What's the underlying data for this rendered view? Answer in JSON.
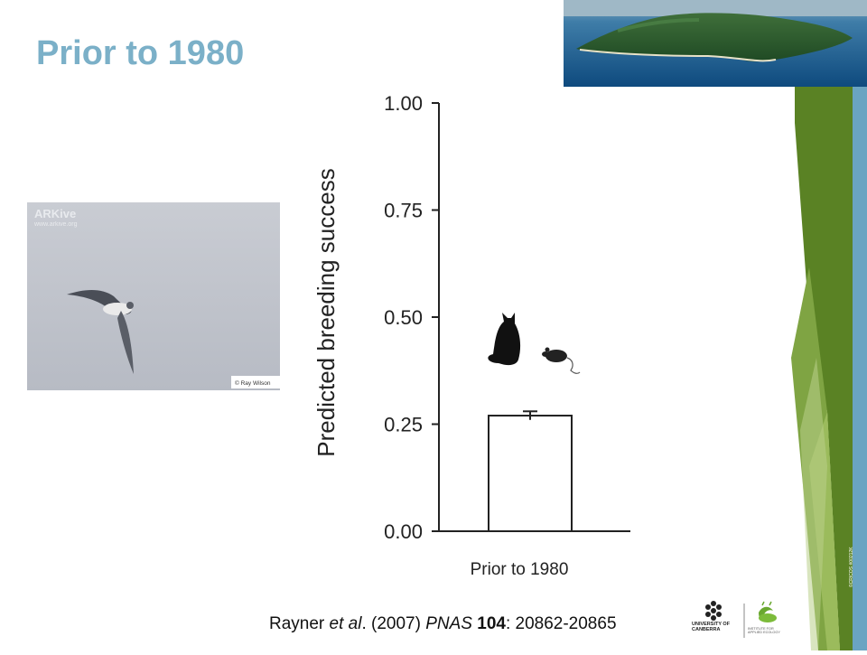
{
  "slide": {
    "title": "Prior to 1980"
  },
  "photos": {
    "island": "island-aerial-photo",
    "bird": {
      "watermark_brand": "ARKive",
      "watermark_url": "www.arkive.org",
      "credit": "© Ray Wilson"
    }
  },
  "chart_data": {
    "type": "bar",
    "ylabel": "Predicted breeding success",
    "xlabel": "Prior to 1980",
    "ylim": [
      0,
      1.0
    ],
    "yticks": [
      0.0,
      0.25,
      0.5,
      0.75,
      1.0
    ],
    "ytick_labels": [
      "0.00",
      "0.25",
      "0.50",
      "0.75",
      "1.00"
    ],
    "categories": [
      "Prior to 1980"
    ],
    "values": [
      0.27
    ],
    "error": [
      0.01
    ],
    "bar_fill": "#ffffff",
    "icons": [
      "cat-icon",
      "rat-icon"
    ],
    "grid": false
  },
  "citation": {
    "authors": "Rayner ",
    "etal": "et al",
    "year": ". (2007) ",
    "journal": "PNAS",
    "volume": "104",
    "pages": ": 20862-20865"
  },
  "logos": {
    "university_line1": "UNIVERSITY OF",
    "university_line2": "CANBERRA",
    "institute_line1": "INSTITUTE FOR",
    "institute_line2": "APPLIED ECOLOGY"
  },
  "sidebar": {
    "copyright": "©CRICOS #00212K"
  },
  "colors": {
    "title": "#7bb0c8",
    "green_dark": "#5a8224",
    "green_light": "#9bbb5c",
    "blue_strip": "#6aa4c2"
  }
}
